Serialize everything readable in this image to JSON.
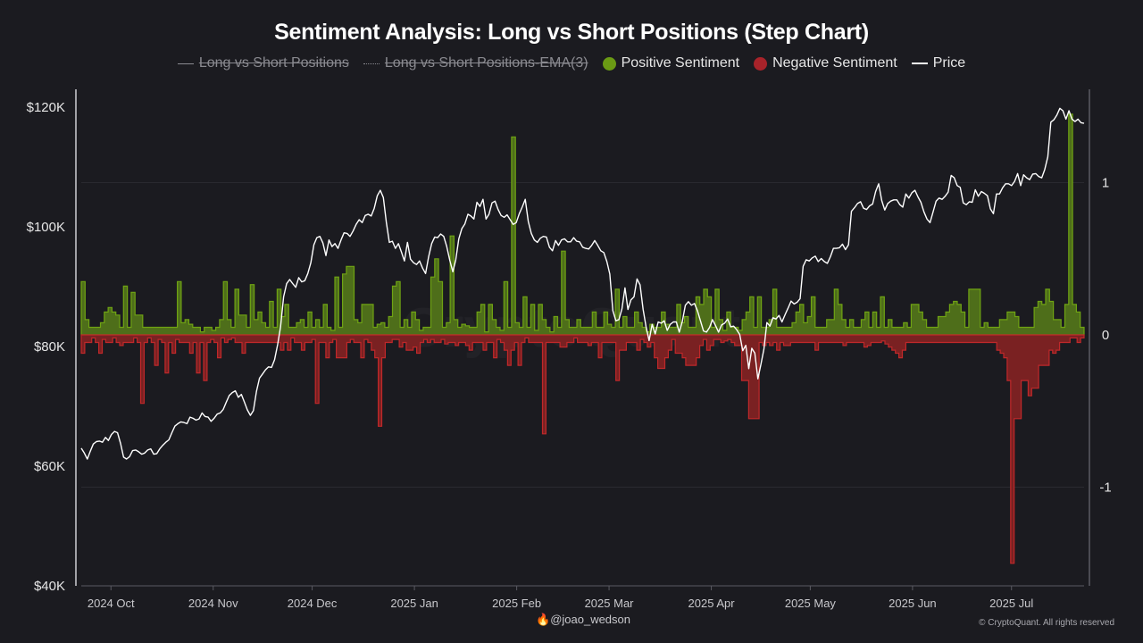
{
  "colors": {
    "background": "#1b1b20",
    "positive_fill": "#4e6e1a",
    "positive_stroke": "#6fa313",
    "negative_fill": "#7a2122",
    "negative_stroke": "#c0282a",
    "positive_legend": "#6a9a14",
    "negative_legend": "#a8232a",
    "price": "#ffffff",
    "grid": "#2a2a30",
    "axis": "#5a5a62"
  },
  "footer": {
    "author_icon": "fire-icon",
    "author": "@joao_wedson",
    "copyright": "© CryptoQuant. All rights reserved"
  },
  "chart_data": {
    "type": "step",
    "title": "Sentiment Analysis: Long vs Short Positions (Step Chart)",
    "legend": [
      {
        "label": "Long vs Short Positions",
        "style": "line",
        "hidden": true
      },
      {
        "label": "Long vs Short Positions-EMA(3)",
        "style": "dotted",
        "hidden": true
      },
      {
        "label": "Positive Sentiment",
        "style": "dot",
        "color": "positive_legend",
        "hidden": false
      },
      {
        "label": "Negative Sentiment",
        "style": "dot",
        "color": "negative_legend",
        "hidden": false
      },
      {
        "label": "Price",
        "style": "line-white",
        "hidden": false
      }
    ],
    "legend_position": "top-center",
    "x_start": "2024-09-22",
    "x_step_days": 2,
    "x_end": "2025-07-23",
    "x_ticks": [
      {
        "label": "2024 Oct",
        "date": "2024-10-01"
      },
      {
        "label": "2024 Nov",
        "date": "2024-11-01"
      },
      {
        "label": "2024 Dec",
        "date": "2024-12-01"
      },
      {
        "label": "2025 Jan",
        "date": "2025-01-01"
      },
      {
        "label": "2025 Feb",
        "date": "2025-02-01"
      },
      {
        "label": "2025 Mar",
        "date": "2025-03-01"
      },
      {
        "label": "2025 Apr",
        "date": "2025-04-01"
      },
      {
        "label": "2025 May",
        "date": "2025-05-01"
      },
      {
        "label": "2025 Jun",
        "date": "2025-06-01"
      },
      {
        "label": "2025 Jul",
        "date": "2025-07-01"
      }
    ],
    "y_left": {
      "ticks": [
        "$120K",
        "$100K",
        "$80K",
        "$60K",
        "$40K"
      ],
      "tick_values": [
        120000,
        100000,
        80000,
        60000,
        40000
      ],
      "range": [
        40000,
        120000
      ]
    },
    "y_right": {
      "ticks": [
        "1",
        "0",
        "-1"
      ],
      "tick_values": [
        1,
        0,
        -1
      ],
      "range": [
        -1.6,
        1.6
      ]
    },
    "grid": true,
    "series": [
      {
        "name": "Positive Sentiment",
        "values": [
          0.35,
          0.1,
          0.05,
          0.05,
          0.05,
          0.08,
          0.15,
          0.18,
          0.15,
          0.13,
          0.05,
          0.32,
          0.05,
          0.28,
          0.13,
          0.13,
          0.05,
          0.05,
          0.05,
          0.05,
          0.05,
          0.05,
          0.05,
          0.05,
          0.05,
          0.35,
          0.08,
          0.1,
          0.07,
          0.05,
          0.05,
          0.02,
          0.05,
          0.05,
          0.03,
          0.05,
          0.1,
          0.35,
          0.1,
          0.05,
          0.3,
          0.13,
          0.13,
          0.05,
          0.33,
          0.1,
          0.15,
          0.08,
          0.05,
          0.22,
          0.05,
          0.3,
          0.12,
          0.2,
          0.05,
          0.05,
          0.08,
          0.1,
          0.05,
          0.15,
          0.05,
          0.1,
          0.05,
          0.2,
          0.05,
          0.03,
          0.38,
          0.05,
          0.4,
          0.45,
          0.45,
          0.1,
          0.08,
          0.2,
          0.2,
          0.2,
          0.05,
          0.07,
          0.08,
          0.05,
          0.12,
          0.32,
          0.35,
          0.05,
          0.1,
          0.05,
          0.15,
          0.1,
          0.03,
          0.05,
          0.05,
          0.38,
          0.5,
          0.35,
          0.05,
          0.08,
          0.65,
          0.1,
          0.05,
          0.07,
          0.06,
          0.05,
          0.05,
          0.15,
          0.2,
          0.02,
          0.2,
          0.1,
          0.05,
          0.03,
          0.35,
          0.05,
          1.3,
          0.08,
          0.05,
          0.25,
          0.05,
          0.2,
          0.03,
          0.2,
          0.1,
          0.05,
          0.02,
          0.12,
          0.05,
          0.55,
          0.1,
          0.05,
          0.05,
          0.1,
          0.05,
          0.05,
          0.05,
          0.15,
          0.05,
          0.05,
          0.15,
          0.07,
          0.05,
          0.3,
          0.05,
          0.12,
          0.05,
          0.05,
          0.15,
          0.08,
          0.05,
          0.02,
          0.07,
          0.05,
          0.05,
          0.15,
          0.07,
          0.05,
          0.05,
          0.2,
          0.08,
          0.12,
          0.05,
          0.05,
          0.25,
          0.2,
          0.3,
          0.25,
          0.05,
          0.3,
          0.1,
          0.03,
          0.15,
          0.05,
          0.05,
          0.03,
          0.1,
          0.15,
          0.25,
          0.05,
          0.25,
          0.05,
          0.05,
          0.1,
          0.3,
          0.05,
          0.05,
          0.05,
          0.05,
          0.08,
          0.15,
          0.2,
          0.08,
          0.12,
          0.25,
          0.05,
          0.05,
          0.05,
          0.1,
          0.1,
          0.3,
          0.2,
          0.1,
          0.05,
          0.1,
          0.05,
          0.05,
          0.1,
          0.15,
          0.05,
          0.15,
          0.05,
          0.25,
          0.05,
          0.1,
          0.05,
          0.05,
          0.05,
          0.08,
          0.05,
          0.2,
          0.2,
          0.15,
          0.1,
          0.05,
          0.05,
          0.05,
          0.12,
          0.12,
          0.15,
          0.2,
          0.22,
          0.2,
          0.15,
          0.05,
          0.3,
          0.3,
          0.3,
          0.05,
          0.08,
          0.05,
          0.05,
          0.05,
          0.1,
          0.1,
          0.15,
          0.15,
          0.12,
          0.05,
          0.05,
          0.05,
          0.05,
          0.18,
          0.22,
          0.2,
          0.3,
          0.22,
          0.1,
          0.1,
          0.05,
          0.2,
          1.45,
          0.2,
          0.15,
          0.05
        ],
        "color": "positive_fill"
      },
      {
        "name": "Negative Sentiment",
        "values": [
          -0.12,
          -0.05,
          -0.05,
          -0.02,
          -0.05,
          -0.12,
          -0.03,
          -0.05,
          -0.05,
          -0.02,
          -0.05,
          -0.07,
          -0.05,
          -0.05,
          -0.05,
          -0.02,
          -0.05,
          -0.45,
          -0.05,
          -0.02,
          -0.05,
          -0.2,
          -0.03,
          -0.05,
          -0.25,
          -0.05,
          -0.12,
          -0.03,
          -0.05,
          -0.05,
          -0.05,
          -0.12,
          -0.05,
          -0.25,
          -0.05,
          -0.3,
          -0.05,
          -0.03,
          -0.05,
          -0.15,
          -0.02,
          -0.05,
          -0.03,
          -0.02,
          -0.05,
          -0.05,
          -0.12,
          -0.05,
          -0.05,
          -0.05,
          -0.05,
          -0.05,
          -0.05,
          -0.05,
          -0.05,
          -0.05,
          -0.05,
          -0.1,
          -0.05,
          -0.1,
          -0.02,
          -0.05,
          -0.05,
          -0.1,
          -0.05,
          -0.05,
          -0.03,
          -0.45,
          -0.05,
          -0.05,
          -0.15,
          -0.05,
          -0.03,
          -0.15,
          -0.15,
          -0.15,
          -0.05,
          -0.03,
          -0.05,
          -0.05,
          -0.15,
          -0.03,
          -0.05,
          -0.1,
          -0.15,
          -0.6,
          -0.15,
          -0.05,
          -0.05,
          -0.03,
          -0.03,
          -0.08,
          -0.05,
          -0.1,
          -0.1,
          -0.08,
          -0.12,
          -0.05,
          -0.03,
          -0.05,
          -0.03,
          -0.05,
          -0.05,
          -0.03,
          -0.06,
          -0.05,
          -0.05,
          -0.07,
          -0.05,
          -0.05,
          -0.07,
          -0.1,
          -0.05,
          -0.05,
          -0.05,
          -0.1,
          -0.05,
          -0.05,
          -0.15,
          -0.03,
          -0.05,
          -0.1,
          -0.2,
          -0.1,
          -0.05,
          -0.2,
          -0.05,
          -0.02,
          -0.05,
          -0.05,
          -0.05,
          -0.05,
          -0.65,
          -0.05,
          -0.05,
          -0.05,
          -0.05,
          -0.08,
          -0.08,
          -0.05,
          -0.05,
          -0.02,
          -0.05,
          -0.05,
          -0.05,
          -0.07,
          -0.05,
          -0.05,
          -0.15,
          -0.05,
          -0.05,
          -0.05,
          -0.05,
          -0.3,
          -0.1,
          -0.1,
          -0.05,
          -0.05,
          -0.05,
          -0.1,
          -0.03,
          -0.05,
          -0.08,
          -0.05,
          -0.15,
          -0.22,
          -0.22,
          -0.15,
          -0.1,
          -0.03,
          -0.12,
          -0.12,
          -0.15,
          -0.2,
          -0.2,
          -0.2,
          -0.15,
          -0.07,
          -0.03,
          -0.1,
          -0.07,
          -0.03,
          -0.03,
          -0.05,
          -0.04,
          -0.03,
          -0.05,
          -0.07,
          -0.07,
          -0.3,
          -0.3,
          -0.55,
          -0.55,
          -0.55,
          -0.05,
          -0.07,
          -0.05,
          -0.07,
          -0.05,
          -0.1,
          -0.05,
          -0.07,
          -0.07,
          -0.05,
          -0.05,
          -0.05,
          -0.05,
          -0.05,
          -0.05,
          -0.05,
          -0.1,
          -0.05,
          -0.05,
          -0.05,
          -0.05,
          -0.05,
          -0.05,
          -0.05,
          -0.07,
          -0.05,
          -0.05,
          -0.05,
          -0.05,
          -0.05,
          -0.08,
          -0.07,
          -0.05,
          -0.05,
          -0.05,
          -0.04,
          -0.06,
          -0.08,
          -0.1,
          -0.12,
          -0.15,
          -0.1,
          -0.05,
          -0.05,
          -0.05,
          -0.05,
          -0.05,
          -0.05,
          -0.05,
          -0.05,
          -0.05,
          -0.05,
          -0.05,
          -0.05,
          -0.05,
          -0.05,
          -0.05,
          -0.05,
          -0.05,
          -0.05,
          -0.05,
          -0.05,
          -0.05,
          -0.05,
          -0.05,
          -0.05,
          -0.05,
          -0.05,
          -0.1,
          -0.12,
          -0.15,
          -0.3,
          -1.5,
          -0.55,
          -0.55,
          -0.3,
          -0.3,
          -0.4,
          -0.35,
          -0.35,
          -0.2,
          -0.2,
          -0.2,
          -0.1,
          -0.12,
          -0.1,
          -0.05,
          -0.05,
          -0.05,
          -0.02,
          -0.02,
          -0.05,
          -0.02
        ],
        "color": "negative_fill"
      },
      {
        "name": "Price",
        "values": [
          63000,
          62200,
          61200,
          62500,
          63700,
          64100,
          64200,
          64000,
          64800,
          64300,
          65300,
          65800,
          65600,
          63800,
          61500,
          61200,
          61600,
          62600,
          62700,
          62400,
          62000,
          62200,
          62700,
          62900,
          62000,
          62100,
          62900,
          63500,
          64000,
          64400,
          65600,
          66700,
          67100,
          67400,
          67300,
          67100,
          68200,
          68000,
          67700,
          67900,
          68900,
          68300,
          68200,
          67500,
          68000,
          68700,
          68900,
          69500,
          70700,
          71800,
          72300,
          72600,
          71500,
          72000,
          70700,
          69400,
          68500,
          69300,
          72500,
          74700,
          75400,
          76100,
          76600,
          76500,
          77800,
          80300,
          83300,
          88300,
          90500,
          91200,
          90500,
          89900,
          91500,
          90800,
          91000,
          92200,
          94000,
          97000,
          98200,
          98400,
          97300,
          95200,
          97800,
          96700,
          97200,
          96400,
          97800,
          99000,
          98900,
          98400,
          99300,
          100400,
          101200,
          100700,
          101900,
          102100,
          101800,
          103100,
          105200,
          106100,
          104900,
          100800,
          97400,
          97600,
          96400,
          97200,
          95800,
          94300,
          97400,
          94600,
          94000,
          93700,
          94300,
          93100,
          92200,
          95000,
          97200,
          98300,
          98200,
          98800,
          98400,
          96700,
          94400,
          92500,
          94500,
          98000,
          99700,
          100500,
          102100,
          101800,
          101300,
          104100,
          103400,
          104600,
          101300,
          102100,
          104000,
          104300,
          102900,
          101900,
          101600,
          102000,
          101200,
          100400,
          100700,
          102200,
          103300,
          104600,
          100900,
          98900,
          97800,
          97400,
          98100,
          98400,
          98300,
          96600,
          96000,
          97700,
          96900,
          97800,
          98000,
          97500,
          97500,
          98200,
          97600,
          97500,
          96600,
          96400,
          96300,
          96900,
          97700,
          96900,
          96000,
          95700,
          94200,
          92100,
          86000,
          84300,
          84500,
          86300,
          89800,
          86200,
          87800,
          88300,
          91300,
          90300,
          86200,
          83300,
          81000,
          83700,
          82100,
          84100,
          83900,
          84300,
          82700,
          83700,
          84100,
          84100,
          82400,
          84200,
          86900,
          87500,
          86900,
          87200,
          86000,
          84300,
          82600,
          82400,
          83200,
          84500,
          83500,
          82400,
          83600,
          83900,
          84600,
          83300,
          83400,
          82800,
          82000,
          79300,
          80200,
          76300,
          79700,
          78900,
          74600,
          77000,
          79600,
          84000,
          83400,
          84800,
          84600,
          85200,
          84100,
          85300,
          86400,
          87600,
          87100,
          87400,
          88000,
          93400,
          94500,
          94300,
          94800,
          95100,
          94200,
          94700,
          94200,
          93900,
          95000,
          96400,
          96400,
          96500,
          97100,
          96200,
          97000,
          102600,
          103200,
          103900,
          104200,
          103100,
          102900,
          103500,
          103800,
          105900,
          107200,
          104400,
          102800,
          103900,
          104300,
          104500,
          104500,
          103700,
          103300,
          105500,
          104800,
          105700,
          106100,
          105000,
          104100,
          102500,
          101300,
          100700,
          102500,
          104300,
          104800,
          104600,
          105100,
          105800,
          108600,
          108200,
          106900,
          106600,
          104000,
          103700,
          104200,
          104100,
          106200,
          105100,
          105900,
          105600,
          105200,
          103000,
          102200,
          105500,
          105500,
          106500,
          107200,
          107200,
          106900,
          107600,
          108900,
          106900,
          108700,
          108200,
          107900,
          108800,
          108900,
          108400,
          108200,
          109600,
          111700,
          117500,
          117900,
          118700,
          119800,
          119400,
          118000,
          119400,
          118000,
          117600,
          118000,
          117400,
          117300
        ]
      }
    ]
  }
}
